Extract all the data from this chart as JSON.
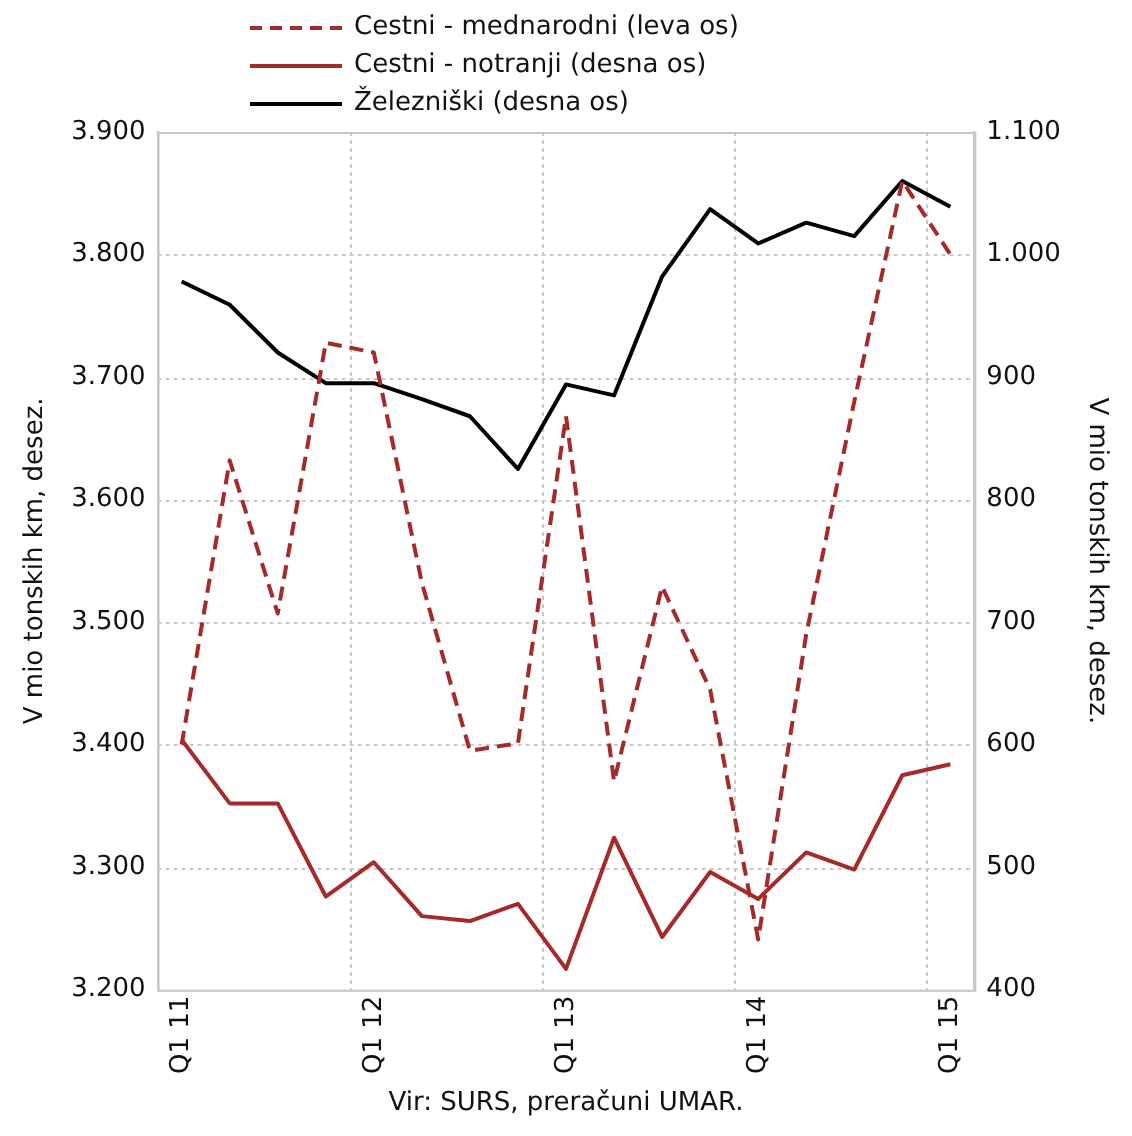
{
  "chart_data": {
    "type": "line",
    "categories": [
      "Q1 11",
      null,
      null,
      null,
      "Q1 12",
      null,
      null,
      null,
      "Q1 13",
      null,
      null,
      null,
      "Q1 14",
      null,
      null,
      null,
      "Q1 15"
    ],
    "series": [
      {
        "name": "Cestni - mednarodni (leva os)",
        "color": "#a52a2a",
        "line_style": "dashed",
        "values": [
          3400,
          3632,
          3507,
          3728,
          3720,
          3532,
          3395,
          3401,
          3668,
          3370,
          3529,
          3445,
          3241,
          3490,
          3680,
          3860,
          3800
        ]
      },
      {
        "name": "Cestni - notranji (desna os)",
        "color": "#a52a2a",
        "axis": "y2",
        "values": [
          604,
          552,
          552,
          476,
          504,
          460,
          456,
          470,
          417,
          524,
          443,
          496,
          474,
          512,
          498,
          575,
          584
        ]
      },
      {
        "name": "Železniški (desna os)",
        "color": "#000000",
        "axis": "y2",
        "values": [
          978,
          959,
          920,
          895,
          895,
          882,
          868,
          825,
          894,
          885,
          982,
          1037,
          1009,
          1026,
          1015,
          1060,
          1039
        ]
      }
    ],
    "ylabel": "V mio tonskih km, desez.",
    "y2label": "V mio tonskih km, desez.",
    "ylim": [
      3200,
      3900
    ],
    "yticks": [
      {
        "value": 3200,
        "label": "3.200"
      },
      {
        "value": 3300,
        "label": "3.300"
      },
      {
        "value": 3400,
        "label": "3.400"
      },
      {
        "value": 3500,
        "label": "3.500"
      },
      {
        "value": 3600,
        "label": "3.600"
      },
      {
        "value": 3700,
        "label": "3.700"
      },
      {
        "value": 3800,
        "label": "3.800"
      },
      {
        "value": 3900,
        "label": "3.900"
      }
    ],
    "y2lim": [
      400,
      1100
    ],
    "y2ticks": [
      400,
      500,
      600,
      700,
      800,
      900,
      {
        "value": 1000,
        "label": "1.000"
      },
      {
        "value": 1100,
        "label": "1.100"
      }
    ],
    "grid": true,
    "legend": "top",
    "marker": "none",
    "annotations": [
      "Vir: SURS, preračuni UMAR."
    ]
  }
}
